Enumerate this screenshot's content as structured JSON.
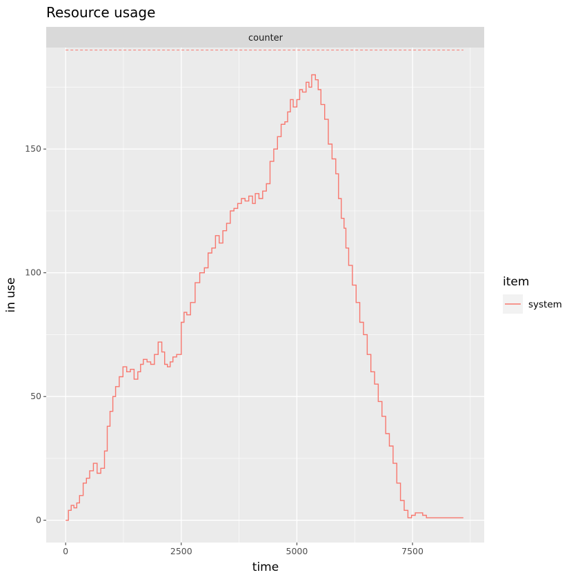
{
  "chart_data": {
    "type": "line",
    "title": "Resource usage",
    "facet": "counter",
    "xlabel": "time",
    "ylabel": "in use",
    "xlim": [
      -420,
      9050
    ],
    "ylim": [
      -9,
      191
    ],
    "x_ticks": [
      0,
      2500,
      5000,
      7500
    ],
    "x_tick_labels": [
      "0",
      "2500",
      "5000",
      "7500"
    ],
    "y_ticks": [
      0,
      50,
      100,
      150
    ],
    "y_tick_labels": [
      "0",
      "50",
      "100",
      "150"
    ],
    "grid": true,
    "legend": {
      "title": "item",
      "position": "right",
      "entries": [
        "system"
      ]
    },
    "capacity": 190,
    "series": [
      {
        "name": "system",
        "color": "#F8766D",
        "x": [
          0,
          60,
          120,
          180,
          240,
          300,
          380,
          450,
          520,
          600,
          680,
          760,
          840,
          900,
          960,
          1020,
          1080,
          1160,
          1240,
          1320,
          1400,
          1480,
          1560,
          1620,
          1680,
          1760,
          1840,
          1920,
          2000,
          2080,
          2140,
          2200,
          2260,
          2320,
          2400,
          2500,
          2560,
          2620,
          2700,
          2800,
          2900,
          3000,
          3080,
          3160,
          3240,
          3320,
          3400,
          3480,
          3560,
          3640,
          3720,
          3800,
          3880,
          3960,
          4040,
          4100,
          4180,
          4260,
          4340,
          4420,
          4500,
          4580,
          4660,
          4740,
          4800,
          4860,
          4920,
          5000,
          5060,
          5120,
          5200,
          5260,
          5320,
          5400,
          5460,
          5520,
          5600,
          5680,
          5760,
          5840,
          5900,
          5960,
          6020,
          6060,
          6120,
          6200,
          6280,
          6360,
          6440,
          6520,
          6600,
          6680,
          6760,
          6840,
          6920,
          7000,
          7080,
          7160,
          7240,
          7320,
          7400,
          7480,
          7560,
          7640,
          7720,
          7800,
          7880,
          7960,
          8040,
          8120,
          8200,
          8280,
          8360,
          8440,
          8500,
          8560,
          8600
        ],
        "y": [
          0,
          4,
          6,
          5,
          7,
          10,
          15,
          17,
          20,
          23,
          19,
          21,
          28,
          38,
          44,
          50,
          54,
          58,
          62,
          60,
          61,
          57,
          60,
          63,
          65,
          64,
          63,
          67,
          72,
          68,
          63,
          62,
          64,
          66,
          67,
          80,
          84,
          83,
          88,
          96,
          100,
          102,
          108,
          110,
          115,
          112,
          117,
          120,
          125,
          126,
          128,
          130,
          129,
          131,
          128,
          132,
          130,
          133,
          136,
          145,
          150,
          155,
          160,
          161,
          165,
          170,
          167,
          170,
          174,
          173,
          177,
          175,
          180,
          178,
          174,
          168,
          162,
          152,
          146,
          140,
          130,
          122,
          118,
          110,
          103,
          95,
          88,
          80,
          75,
          67,
          60,
          55,
          48,
          42,
          35,
          30,
          23,
          15,
          8,
          4,
          1,
          2,
          3,
          3,
          2,
          1,
          1,
          1,
          1,
          1,
          1,
          1,
          1,
          1,
          1,
          1,
          1
        ]
      }
    ]
  }
}
